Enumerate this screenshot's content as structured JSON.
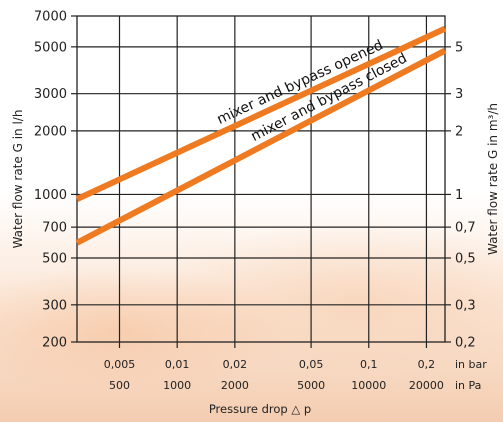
{
  "chart_data": {
    "type": "line",
    "title": "",
    "xlabel": "Pressure drop △ p",
    "ylabel": "Water flow rate G in l/h",
    "ylabel_right": "Water flow rate G in m³/h",
    "x_scale": "log",
    "y_scale": "log",
    "xlim": [
      0.003,
      0.25
    ],
    "ylim": [
      200,
      7000
    ],
    "grid": true,
    "x_ticks": [
      0.005,
      0.01,
      0.02,
      0.05,
      0.1,
      0.2
    ],
    "x_tick_labels_bar": [
      "0,005",
      "0,01",
      "0,02",
      "0,05",
      "0,1",
      "0,2"
    ],
    "x_tick_labels_pa": [
      "500",
      "1000",
      "2000",
      "5000",
      "10000",
      "20000"
    ],
    "x_unit_bar": "in bar",
    "x_unit_pa": "in Pa",
    "y_ticks": [
      200,
      300,
      500,
      700,
      1000,
      2000,
      3000,
      5000,
      7000
    ],
    "y_tick_labels_left": [
      "200",
      "300",
      "500",
      "700",
      "1000",
      "2000",
      "3000",
      "5000",
      "7000"
    ],
    "y_ticks_right": [
      200,
      300,
      500,
      700,
      1000,
      2000,
      3000,
      5000
    ],
    "y_tick_labels_right": [
      "0,2",
      "0,3",
      "0,5",
      "0,7",
      "1",
      "2",
      "3",
      "5"
    ],
    "series": [
      {
        "name": "mixer and bypass opened",
        "color": "#ee7a22",
        "x": [
          0.003,
          0.25
        ],
        "y": [
          950,
          6100
        ]
      },
      {
        "name": "mixer and bypass closed",
        "color": "#ee7a22",
        "x": [
          0.003,
          0.25
        ],
        "y": [
          590,
          4800
        ]
      }
    ]
  }
}
